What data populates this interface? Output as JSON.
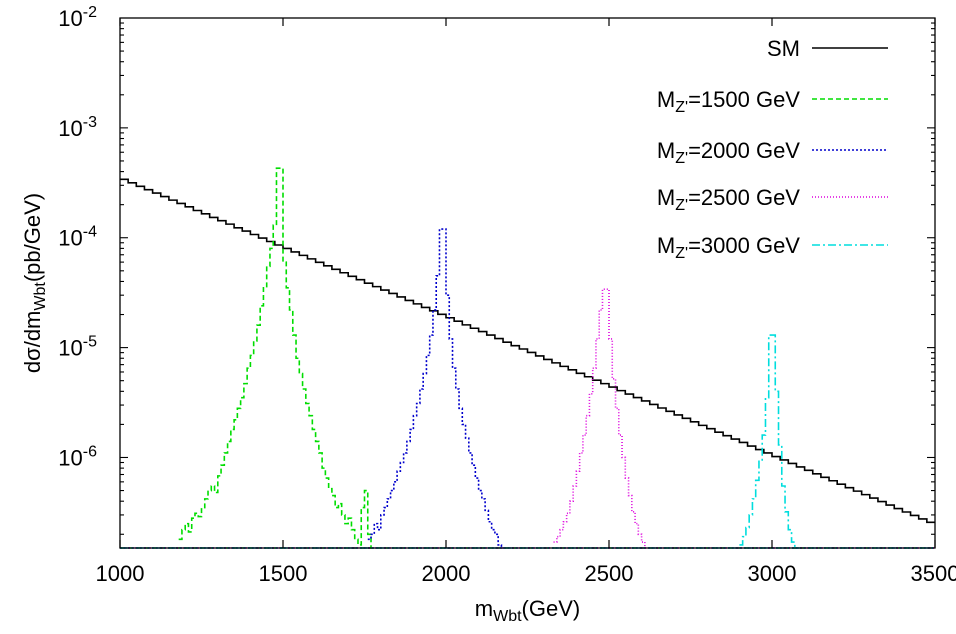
{
  "chart_data": {
    "type": "line",
    "title": "",
    "xlabel": {
      "main": "m",
      "sub": "Wbt",
      "rest": "(GeV)"
    },
    "ylabel": {
      "main": "dσ/dm",
      "sub": "Wbt",
      "rest": "(pb/GeV)"
    },
    "xlim": [
      1000,
      3500
    ],
    "ylim": [
      1.5e-07,
      0.01
    ],
    "yscale": "log",
    "grid": false,
    "legend_position": "top-right",
    "x_ticks": [
      "1000",
      "1500",
      "2000",
      "2500",
      "3000",
      "3500"
    ],
    "x_tick_values": [
      1000,
      1500,
      2000,
      2500,
      3000,
      3500
    ],
    "y_ticks": [
      {
        "base": "10",
        "exp": "-2",
        "value": 0.01
      },
      {
        "base": "10",
        "exp": "-3",
        "value": 0.001
      },
      {
        "base": "10",
        "exp": "-4",
        "value": 0.0001
      },
      {
        "base": "10",
        "exp": "-5",
        "value": 1e-05
      },
      {
        "base": "10",
        "exp": "-6",
        "value": 1e-06
      }
    ],
    "series": [
      {
        "name": "SM",
        "legend": {
          "main": "SM",
          "sub": "",
          "rest": ""
        },
        "color": "#000000",
        "dash": "",
        "bin_width": 25,
        "x": [
          1000,
          1025,
          1050,
          1075,
          1100,
          1125,
          1150,
          1175,
          1200,
          1225,
          1250,
          1275,
          1300,
          1325,
          1350,
          1375,
          1400,
          1425,
          1450,
          1475,
          1500,
          1525,
          1550,
          1575,
          1600,
          1625,
          1650,
          1675,
          1700,
          1725,
          1750,
          1775,
          1800,
          1825,
          1850,
          1875,
          1900,
          1925,
          1950,
          1975,
          2000,
          2025,
          2050,
          2075,
          2100,
          2125,
          2150,
          2175,
          2200,
          2225,
          2250,
          2275,
          2300,
          2325,
          2350,
          2375,
          2400,
          2425,
          2450,
          2475,
          2500,
          2525,
          2550,
          2575,
          2600,
          2625,
          2650,
          2675,
          2700,
          2725,
          2750,
          2775,
          2800,
          2825,
          2850,
          2875,
          2900,
          2925,
          2950,
          2975,
          3000,
          3025,
          3050,
          3075,
          3100,
          3125,
          3150,
          3175,
          3200,
          3225,
          3250,
          3275,
          3300,
          3325,
          3350,
          3375,
          3400,
          3425,
          3450,
          3475
        ],
        "y": [
          0.00034,
          0.000316,
          0.000294,
          0.000274,
          0.000255,
          0.000237,
          0.00022,
          0.000205,
          0.000191,
          0.000177,
          0.000165,
          0.000153,
          0.000143,
          0.000133,
          0.000123,
          0.000115,
          0.000107,
          9.94e-05,
          9.24e-05,
          8.59e-05,
          7.99e-05,
          7.43e-05,
          6.91e-05,
          6.42e-05,
          5.97e-05,
          5.55e-05,
          5.16e-05,
          4.8e-05,
          4.46e-05,
          4.15e-05,
          3.86e-05,
          3.59e-05,
          3.34e-05,
          3.11e-05,
          2.89e-05,
          2.69e-05,
          2.5e-05,
          2.32e-05,
          2.16e-05,
          2.01e-05,
          1.87e-05,
          1.74e-05,
          1.61e-05,
          1.5e-05,
          1.4e-05,
          1.3e-05,
          1.21e-05,
          1.12e-05,
          1.04e-05,
          9.71e-06,
          9.03e-06,
          8.4e-06,
          7.81e-06,
          7.26e-06,
          6.75e-06,
          6.28e-06,
          5.84e-06,
          5.43e-06,
          5.05e-06,
          4.7e-06,
          4.37e-06,
          4.06e-06,
          3.78e-06,
          3.51e-06,
          3.27e-06,
          3.04e-06,
          2.82e-06,
          2.63e-06,
          2.44e-06,
          2.27e-06,
          2.11e-06,
          1.96e-06,
          1.83e-06,
          1.7e-06,
          1.58e-06,
          1.47e-06,
          1.37e-06,
          1.27e-06,
          1.18e-06,
          1.1e-06,
          1.02e-06,
          9.5e-07,
          8.83e-07,
          8.21e-07,
          7.64e-07,
          7.1e-07,
          6.6e-07,
          6.14e-07,
          5.71e-07,
          5.31e-07,
          4.94e-07,
          4.59e-07,
          4.27e-07,
          3.97e-07,
          3.69e-07,
          3.43e-07,
          3.19e-07,
          2.97e-07,
          2.76e-07,
          2.57e-07
        ]
      },
      {
        "name": "MZ'=1500 GeV",
        "legend": {
          "main": "M",
          "sub": "Z'",
          "rest": "=1500 GeV"
        },
        "color": "#00dd00",
        "dash": "5,3",
        "bin_width": 10,
        "x": [
          1180,
          1190,
          1200,
          1210,
          1220,
          1230,
          1240,
          1250,
          1260,
          1270,
          1280,
          1290,
          1300,
          1310,
          1320,
          1330,
          1340,
          1350,
          1360,
          1370,
          1380,
          1390,
          1400,
          1410,
          1420,
          1430,
          1440,
          1450,
          1460,
          1470,
          1480,
          1490,
          1500,
          1510,
          1520,
          1530,
          1540,
          1550,
          1560,
          1570,
          1580,
          1590,
          1600,
          1610,
          1620,
          1630,
          1640,
          1650,
          1660,
          1670,
          1680,
          1690,
          1700,
          1710,
          1720,
          1730,
          1740,
          1750,
          1760,
          1770
        ],
        "y": [
          1.8e-07,
          2.2e-07,
          2.5e-07,
          2.1e-07,
          2.8e-07,
          3.1e-07,
          2.9e-07,
          3.4e-07,
          4.2e-07,
          5e-07,
          5.5e-07,
          4.8e-07,
          6.8e-07,
          8.5e-07,
          1.1e-06,
          1.4e-06,
          1.8e-06,
          2.2e-06,
          2.8e-06,
          3.5e-06,
          4.7e-06,
          6.5e-06,
          8.5e-06,
          1.15e-05,
          1.6e-05,
          2.4e-05,
          3.5e-05,
          5.5e-05,
          8e-05,
          0.00013,
          0.00043,
          0.00043,
          6e-05,
          3.5e-05,
          2.2e-05,
          1.3e-05,
          8e-06,
          5.8e-06,
          4.2e-06,
          3.1e-06,
          2.4e-06,
          1.8e-06,
          1.4e-06,
          1.1e-06,
          8e-07,
          6.5e-07,
          5.2e-07,
          4.5e-07,
          3.5e-07,
          3.8e-07,
          3e-07,
          2.5e-07,
          2.8e-07,
          2.2e-07,
          1.8e-07,
          1.6e-07,
          3.5e-07,
          5e-07,
          2e-07,
          1.5e-07
        ]
      },
      {
        "name": "MZ'=2000 GeV",
        "legend": {
          "main": "M",
          "sub": "Z'",
          "rest": "=2000 GeV"
        },
        "color": "#0000cc",
        "dash": "2,2",
        "bin_width": 10,
        "x": [
          1760,
          1770,
          1780,
          1790,
          1800,
          1810,
          1820,
          1830,
          1840,
          1850,
          1860,
          1870,
          1880,
          1890,
          1900,
          1910,
          1920,
          1930,
          1940,
          1950,
          1960,
          1970,
          1980,
          1990,
          2000,
          2010,
          2020,
          2030,
          2040,
          2050,
          2060,
          2070,
          2080,
          2090,
          2100,
          2110,
          2120,
          2130,
          2140,
          2150,
          2160,
          2170
        ],
        "y": [
          1.8e-07,
          2e-07,
          2.5e-07,
          2.2e-07,
          3e-07,
          3.5e-07,
          4.2e-07,
          5e-07,
          6e-07,
          7.5e-07,
          9e-07,
          1.1e-06,
          1.4e-06,
          1.8e-06,
          2.4e-06,
          3.1e-06,
          4.2e-06,
          5.8e-06,
          8.5e-06,
          1.3e-05,
          2.2e-05,
          4.5e-05,
          0.00012,
          0.00012,
          3e-05,
          1.2e-05,
          6.5e-06,
          4.2e-06,
          2.8e-06,
          2e-06,
          1.5e-06,
          1.1e-06,
          8.5e-07,
          6.5e-07,
          5e-07,
          4.2e-07,
          3.3e-07,
          2.6e-07,
          2.2e-07,
          2e-07,
          1.6e-07,
          1.5e-07
        ]
      },
      {
        "name": "MZ'=2500 GeV",
        "legend": {
          "main": "M",
          "sub": "Z'",
          "rest": "=2500 GeV"
        },
        "color": "#dd00dd",
        "dash": "1,2",
        "bin_width": 10,
        "x": [
          2330,
          2340,
          2350,
          2360,
          2370,
          2380,
          2390,
          2400,
          2410,
          2420,
          2430,
          2440,
          2450,
          2460,
          2470,
          2480,
          2490,
          2500,
          2510,
          2520,
          2530,
          2540,
          2550,
          2560,
          2570,
          2580,
          2590,
          2600,
          2610
        ],
        "y": [
          1.7e-07,
          1.9e-07,
          2.2e-07,
          2.6e-07,
          3.1e-07,
          4e-07,
          5.5e-07,
          7.5e-07,
          1.1e-06,
          1.6e-06,
          2.4e-06,
          3.8e-06,
          6.5e-06,
          1.2e-05,
          2.2e-05,
          3.4e-05,
          3.4e-05,
          1.2e-05,
          5.2e-06,
          2.8e-06,
          1.6e-06,
          1e-06,
          6.5e-07,
          4.5e-07,
          3.2e-07,
          2.5e-07,
          2e-07,
          1.7e-07,
          1.5e-07
        ]
      },
      {
        "name": "MZ'=3000 GeV",
        "legend": {
          "main": "M",
          "sub": "Z'",
          "rest": "=3000 GeV"
        },
        "color": "#00dddd",
        "dash": "8,3,2,3",
        "bin_width": 10,
        "x": [
          2900,
          2910,
          2920,
          2930,
          2940,
          2950,
          2960,
          2970,
          2980,
          2990,
          3000,
          3010,
          3020,
          3030,
          3040,
          3050,
          3060,
          3070
        ],
        "y": [
          1.6e-07,
          1.9e-07,
          2.3e-07,
          3e-07,
          4.2e-07,
          6.2e-07,
          9.5e-07,
          1.6e-06,
          3.5e-06,
          1.3e-05,
          1.3e-05,
          4e-06,
          1.3e-06,
          5.5e-07,
          3.2e-07,
          2.2e-07,
          1.7e-07,
          1.5e-07
        ]
      }
    ]
  }
}
